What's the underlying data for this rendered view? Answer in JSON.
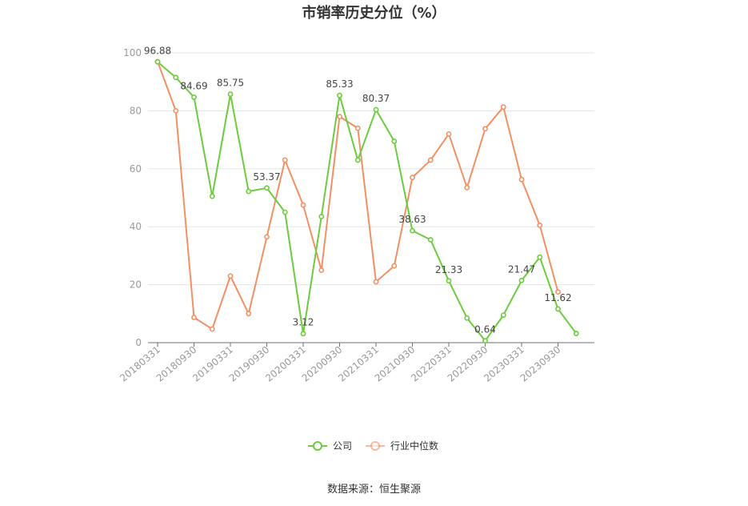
{
  "page": {
    "source": "数据来源：恒生聚源"
  },
  "chart_data": {
    "type": "line",
    "title": "市销率历史分位（%）",
    "xlabel": "",
    "ylabel": "",
    "ylim": [
      0,
      100
    ],
    "yticks": [
      0,
      20,
      40,
      60,
      80,
      100
    ],
    "grid": true,
    "legend_position": "bottom-center",
    "x": [
      "20180331",
      "20180630",
      "20180930",
      "20181231",
      "20190331",
      "20190630",
      "20190930",
      "20191231",
      "20200331",
      "20200630",
      "20200930",
      "20201231",
      "20210331",
      "20210630",
      "20210930",
      "20211231",
      "20220331",
      "20220630",
      "20220930",
      "20221231",
      "20230331",
      "20230630",
      "20230930",
      "20231231"
    ],
    "x_tick_labels": [
      "20180331",
      "20180930",
      "20190331",
      "20190930",
      "20200331",
      "20200930",
      "20210331",
      "20210930",
      "20220331",
      "20220930",
      "20230331",
      "20230930"
    ],
    "series": [
      {
        "name": "公司",
        "color": "#6ccb3e",
        "values": [
          96.88,
          91.5,
          84.69,
          50.5,
          85.75,
          52.2,
          53.37,
          45.0,
          3.12,
          43.5,
          85.33,
          63.0,
          80.37,
          69.5,
          38.63,
          35.5,
          21.33,
          8.5,
          0.64,
          9.5,
          21.47,
          29.5,
          11.62,
          3.2
        ],
        "data_labels": {
          "0": "96.88",
          "2": "84.69",
          "4": "85.75",
          "6": "53.37",
          "8": "3.12",
          "10": "85.33",
          "12": "80.37",
          "14": "38.63",
          "16": "21.33",
          "18": "0.64",
          "20": "21.47",
          "22": "11.62"
        }
      },
      {
        "name": "行业中位数",
        "color": "#f39063",
        "values": [
          97.0,
          80.0,
          8.7,
          4.7,
          23.0,
          10.0,
          36.5,
          63.0,
          47.5,
          25.0,
          78.0,
          74.0,
          21.0,
          26.5,
          57.0,
          63.0,
          72.0,
          53.5,
          73.8,
          81.3,
          56.3,
          40.5,
          17.5,
          null
        ]
      }
    ]
  }
}
